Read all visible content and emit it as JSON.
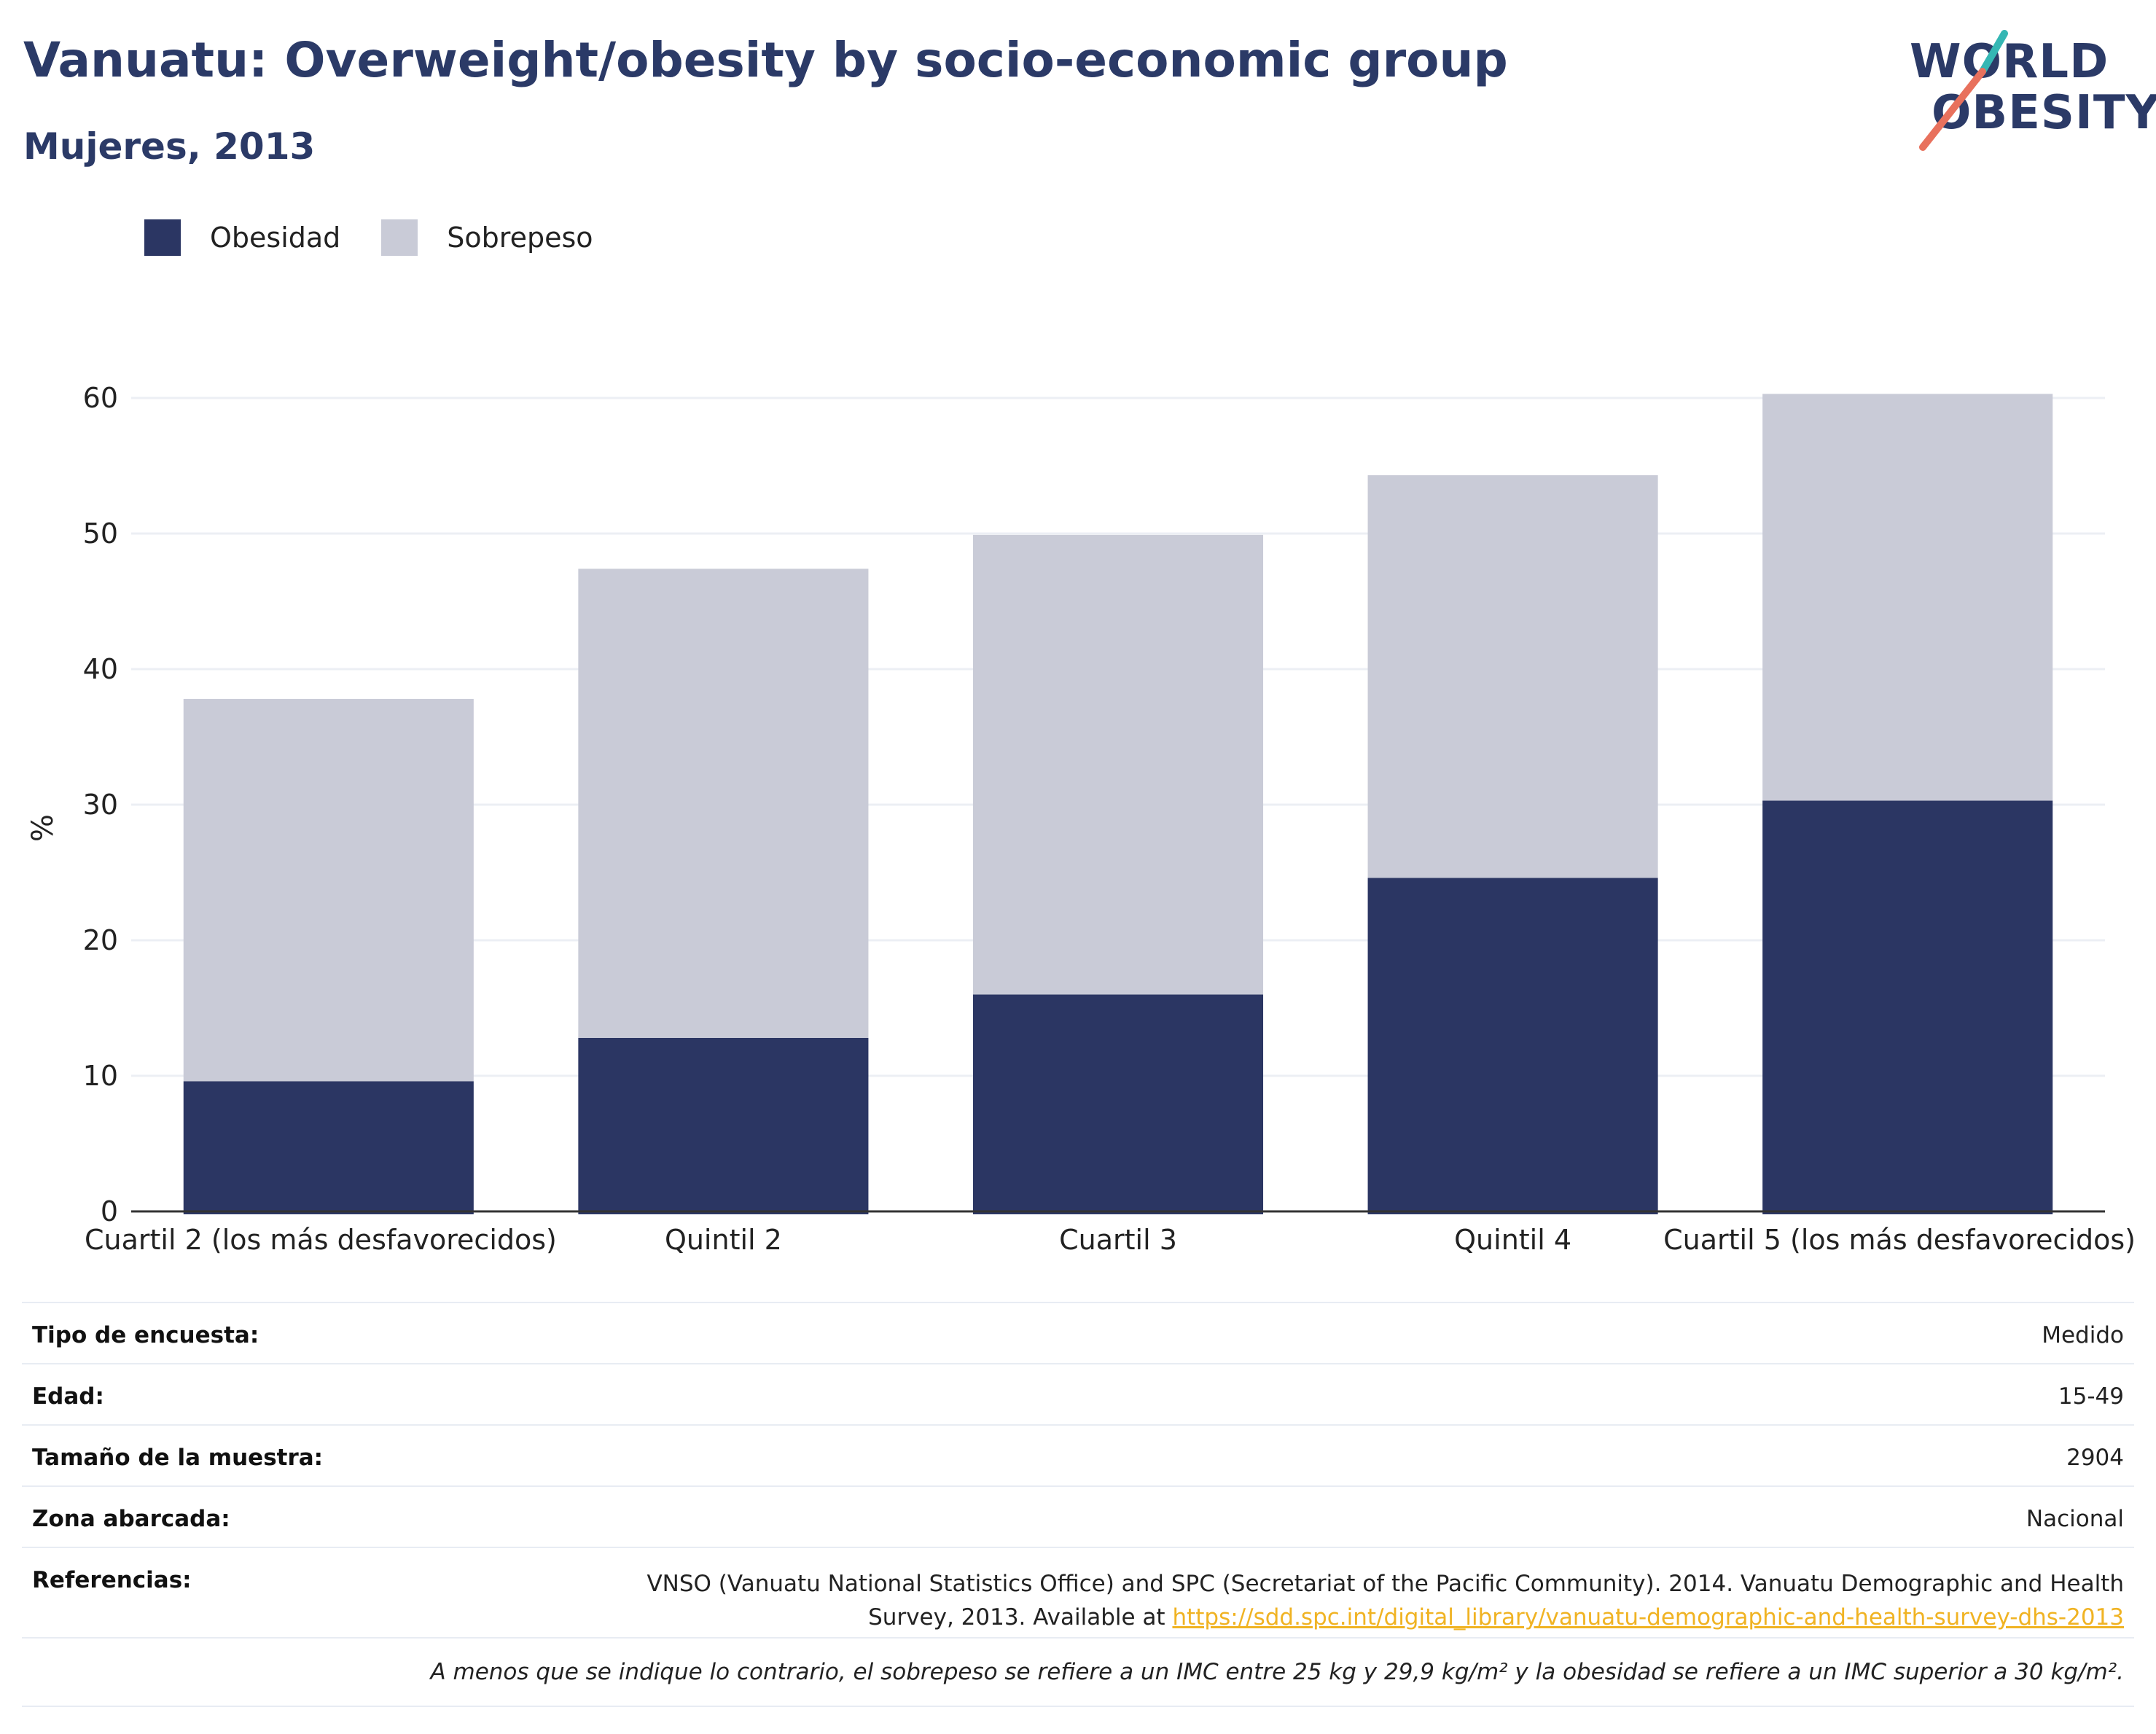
{
  "header": {
    "title": "Vanuatu: Overweight/obesity by socio-economic group",
    "subtitle": "Mujeres, 2013"
  },
  "logo": {
    "line1": "WORLD",
    "line2": "OBESITY",
    "colors": {
      "text": "#2b3a67",
      "teal": "#35b7b4",
      "coral": "#e8715d"
    }
  },
  "legend": [
    {
      "label": "Obesidad",
      "color": "#2b3663"
    },
    {
      "label": "Sobrepeso",
      "color": "#c9cbd7"
    }
  ],
  "chart_data": {
    "type": "bar",
    "stacked": true,
    "categories": [
      "Cuartil 2 (los más desfavorecidos)",
      "Quintil 2",
      "Cuartil 3",
      "Quintil 4",
      "Cuartil 5 (los más desfavorecidos)"
    ],
    "series": [
      {
        "name": "Obesidad",
        "color": "#2b3663",
        "values": [
          9.6,
          12.8,
          16.0,
          24.6,
          30.3
        ]
      },
      {
        "name": "Sobrepeso",
        "color": "#c9cbd7",
        "values": [
          28.2,
          34.6,
          33.9,
          29.7,
          30.0
        ]
      }
    ],
    "ylabel": "%",
    "xlabel": "",
    "ylim": [
      0,
      60
    ],
    "yticks": [
      0,
      10,
      20,
      30,
      40,
      50,
      60
    ],
    "grid": true,
    "legend_position": "top-left"
  },
  "info": [
    {
      "label": "Tipo de encuesta:",
      "value": "Medido"
    },
    {
      "label": "Edad:",
      "value": "15-49"
    },
    {
      "label": "Tamaño de la muestra:",
      "value": "2904"
    },
    {
      "label": "Zona abarcada:",
      "value": "Nacional"
    }
  ],
  "references": {
    "label": "Referencias:",
    "text": "VNSO (Vanuatu National Statistics Office) and SPC (Secretariat of the Pacific Community). 2014. Vanuatu Demographic and Health Survey, 2013. Available at ",
    "link": "https://sdd.spc.int/digital_library/vanuatu-demographic-and-health-survey-dhs-2013"
  },
  "note": "A menos que se indique lo contrario, el sobrepeso se refiere a un IMC entre 25 kg y 29,9 kg/m² y la obesidad se refiere a un IMC superior a 30 kg/m²."
}
